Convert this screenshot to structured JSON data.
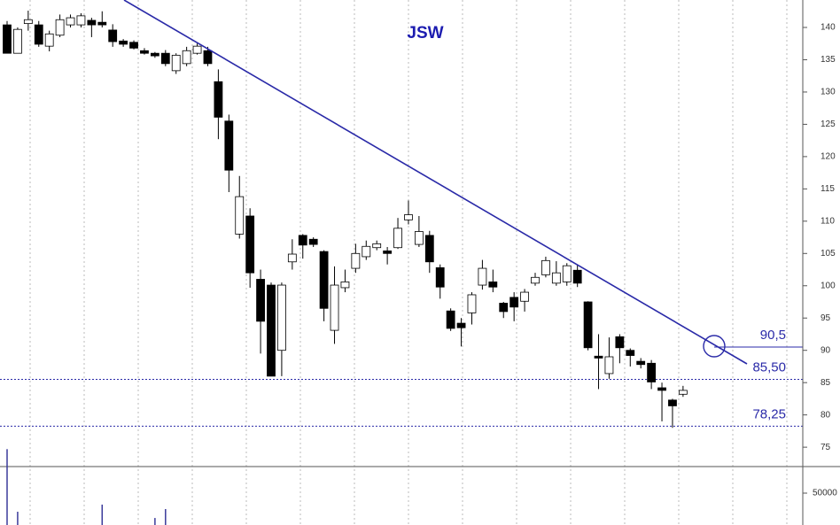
{
  "chart_data": {
    "type": "candlestick",
    "title": "JSW",
    "open": [
      140.4,
      136,
      140.6,
      140.4,
      137.1,
      138.8,
      140.4,
      140.4,
      141.1,
      140.8,
      139.6,
      137.9,
      137.7,
      136.4,
      136,
      136,
      133.3,
      134.4,
      136,
      136.4,
      131.6,
      125.5,
      108,
      110.8,
      101,
      100.1,
      90,
      103.7,
      107.8,
      107.2,
      105.3,
      93.1,
      99.7,
      102.7,
      104.5,
      105.9,
      105.4,
      105.9,
      110.2,
      106.4,
      107.8,
      102.8,
      96.1,
      94.2,
      95.8,
      100.1,
      100.6,
      97.3,
      98.2,
      97.6,
      100.4,
      101.7,
      100.4,
      100.6,
      102.4,
      97.5,
      89.1,
      86.4,
      92.1,
      90,
      88.3,
      88,
      84.2,
      82.3,
      83.2
    ],
    "high": [
      141,
      140,
      142.6,
      141,
      139.5,
      142,
      142,
      142.2,
      141.5,
      142.5,
      140.5,
      138.2,
      138,
      136.8,
      136.2,
      136.5,
      136,
      137,
      137.5,
      137,
      133.5,
      126.5,
      117,
      112,
      102.5,
      100.5,
      100.5,
      107.2,
      108,
      107.5,
      105.5,
      103,
      102.5,
      106.5,
      107,
      107,
      106,
      110.5,
      113.2,
      110.8,
      108.5,
      103.3,
      96.5,
      95,
      99,
      104,
      102.5,
      97.5,
      99,
      99.5,
      102,
      104.5,
      103.8,
      103.5,
      103.2,
      97.6,
      92.5,
      92,
      92.5,
      90.3,
      88.8,
      88.5,
      85,
      82.5,
      84.5
    ],
    "low": [
      136,
      136,
      139.5,
      137,
      136.3,
      138.5,
      140,
      140,
      138.5,
      140,
      137,
      137,
      136.6,
      135.8,
      135.3,
      134,
      132.8,
      134,
      135.8,
      134,
      122.7,
      114.5,
      107.3,
      99.7,
      89.5,
      86,
      86,
      102.5,
      104.2,
      106,
      94.5,
      91,
      99,
      102,
      104,
      105.5,
      103.3,
      105.7,
      109.5,
      106,
      102,
      98,
      93,
      90.6,
      94,
      99.4,
      99,
      95,
      94.5,
      96,
      100,
      101.3,
      100,
      100,
      99.8,
      90,
      84,
      85.6,
      88,
      87.5,
      87.2,
      84,
      79,
      78,
      82.8
    ],
    "close": [
      136,
      139.7,
      141.2,
      137.4,
      139,
      141.2,
      141.5,
      141.8,
      140.4,
      140.4,
      137.8,
      137.4,
      136.8,
      136,
      135.6,
      134.4,
      135.7,
      136.4,
      137.1,
      134.4,
      126.1,
      117.9,
      113.8,
      102,
      94.5,
      86,
      100.1,
      104.9,
      106.3,
      106.4,
      96.5,
      100.1,
      100.6,
      105,
      106.1,
      106.5,
      105,
      108.9,
      111,
      108.4,
      103.7,
      99.8,
      93.4,
      93.5,
      98.6,
      102.7,
      99.8,
      96,
      96.7,
      99,
      101.3,
      103.9,
      102,
      103.1,
      100.4,
      90.4,
      88.8,
      89,
      90.4,
      89.2,
      87.8,
      85.1,
      83.8,
      81.4,
      83.8
    ],
    "up_color": "#ffffff",
    "down_color": "#000000",
    "ylim": [
      72,
      144.25
    ],
    "yticks": [
      75,
      80,
      85,
      90,
      95,
      100,
      105,
      110,
      115,
      120,
      125,
      130,
      135,
      140
    ],
    "levels": [
      {
        "value": 90.5,
        "label": "90,5"
      },
      {
        "value": 85.5,
        "label": "85,50"
      },
      {
        "value": 78.25,
        "label": "78,25"
      }
    ],
    "level_color": "#2a2aa8",
    "volume": [
      119000,
      20800,
      null,
      null,
      null,
      null,
      null,
      null,
      null,
      32000,
      null,
      null,
      null,
      null,
      11000,
      25000,
      null,
      null,
      null,
      null,
      null,
      null,
      null,
      null,
      null,
      null,
      null,
      null,
      null,
      null,
      null,
      null,
      null,
      null,
      null,
      null,
      null,
      null,
      null,
      null,
      null,
      null,
      null,
      null,
      null,
      null,
      null,
      null,
      null,
      null,
      null,
      null,
      null,
      null,
      null,
      null,
      null,
      null,
      null,
      null,
      null,
      null,
      null,
      null,
      null
    ],
    "volume_color": "#3a3a9a",
    "volume_ylim": [
      0,
      91667
    ],
    "volume_yticks": [
      50000
    ]
  }
}
